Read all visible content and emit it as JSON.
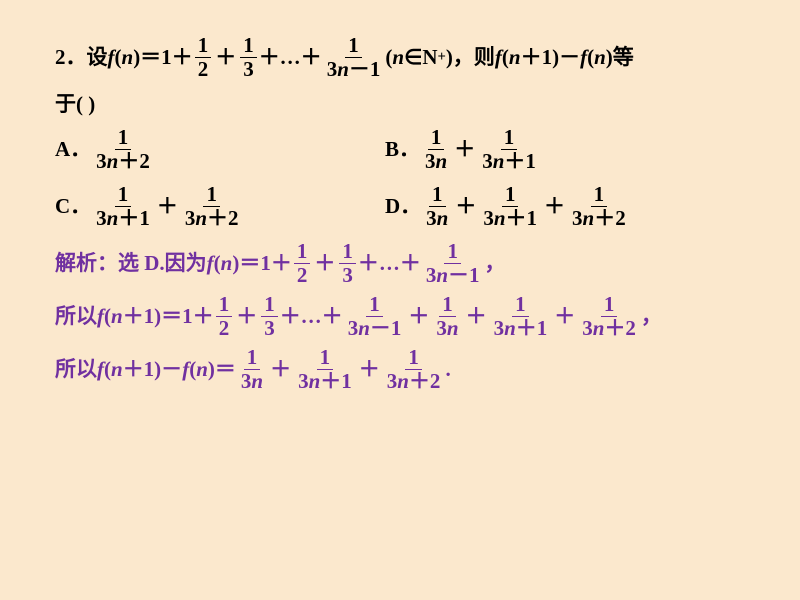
{
  "colors": {
    "bg": "#fbe8cd",
    "text": "#000000",
    "solution": "#7030a0"
  },
  "problem": {
    "number": "2．",
    "prefix": "设 ",
    "fn": "f(n)＝1＋",
    "terms": {
      "t1num": "1",
      "t1den": "2",
      "t2num": "1",
      "t2den": "3",
      "dots": "＋…＋",
      "tknum": "1",
      "tkden": "3n－1"
    },
    "cond": "(n∈N",
    "cond_sub": "+",
    "cond_end": ")，则 ",
    "tail": "f(n＋1)－f(n)等",
    "line2": "于(        )"
  },
  "options": {
    "A": {
      "label": "A．",
      "num": "1",
      "den": "3n＋2"
    },
    "B": {
      "label": "B．",
      "p1num": "1",
      "p1den": "3n",
      "p2num": "1",
      "p2den": "3n＋1"
    },
    "C": {
      "label": "C．",
      "p1num": "1",
      "p1den": "3n＋1",
      "p2num": "1",
      "p2den": "3n＋2"
    },
    "D": {
      "label": "D．",
      "p1num": "1",
      "p1den": "3n",
      "p2num": "1",
      "p2den": "3n＋1",
      "p3num": "1",
      "p3den": "3n＋2"
    }
  },
  "solution": {
    "l1_pre": "解析：选 D.因为 ",
    "l1_fn": "f(n)＝1＋",
    "l1_t1n": "1",
    "l1_t1d": "2",
    "l1_t2n": "1",
    "l1_t2d": "3",
    "l1_dots": "＋…＋",
    "l1_tkn": "1",
    "l1_tkd": "3n－1",
    "l1_end": "，",
    "l2_pre": "所以 ",
    "l2_fn": "f(n＋1)＝1＋",
    "l2_t1n": "1",
    "l2_t1d": "2",
    "l2_t2n": "1",
    "l2_t2d": "3",
    "l2_dots": "＋…＋",
    "l2_a_n": "1",
    "l2_a_d": "3n－1",
    "l2_b_n": "1",
    "l2_b_d": "3n",
    "l2_c_n": "1",
    "l2_c_d": "3n＋1",
    "l2_d_n": "1",
    "l2_d_d": "3n＋2",
    "l2_end": "，",
    "l3_pre": "所以 ",
    "l3_fn": "f(n＋1)－f(n)＝",
    "l3_a_n": "1",
    "l3_a_d": "3n",
    "l3_b_n": "1",
    "l3_b_d": "3n＋1",
    "l3_c_n": "1",
    "l3_c_d": "3n＋2",
    "l3_end": "."
  }
}
